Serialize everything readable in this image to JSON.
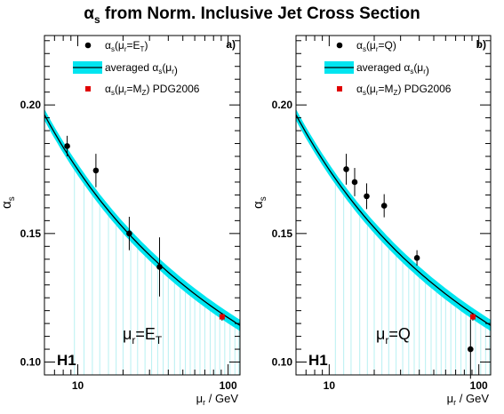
{
  "figure": {
    "title_symbol": "α",
    "title_sub": "s",
    "title_rest": " from Norm. Inclusive Jet Cross Section"
  },
  "colors": {
    "band": "#00e5f0",
    "band_lines": "#b8f0f2",
    "curve": "#000000",
    "data_marker": "#000000",
    "pdg_marker": "#e00000"
  },
  "chart_data": [
    {
      "type": "scatter",
      "panel_label": "a)",
      "experiment_label": "H1",
      "scale_label": {
        "main": "μ",
        "sub": "r",
        "eq": "=E",
        "eq_sub": "T"
      },
      "xlabel": {
        "main": "μ",
        "sub": "r",
        "rest": " / GeV"
      },
      "ylabel": {
        "main": "α",
        "sub": "s"
      },
      "xscale": "log",
      "xlim": [
        6,
        120
      ],
      "ylim": [
        0.095,
        0.227
      ],
      "xticks": [
        {
          "value": 10,
          "label": "10"
        },
        {
          "value": 100,
          "label": "100"
        }
      ],
      "yticks": [
        {
          "value": 0.1,
          "label": "0.10"
        },
        {
          "value": 0.15,
          "label": "0.15"
        },
        {
          "value": 0.2,
          "label": "0.20"
        }
      ],
      "legend_position": "top-right",
      "legend": [
        {
          "marker": "black-dot",
          "main": "α",
          "sub": "s",
          "open": "(μ",
          "sub2": "r",
          "eq": "=E",
          "sub3": "T",
          "close": ")"
        },
        {
          "marker": "cyan-band",
          "main": "averaged α",
          "sub": "s",
          "open": "(μ",
          "sub2": "r",
          "eq": "",
          "sub3": "",
          "close": ")"
        },
        {
          "marker": "red-square",
          "main": "α",
          "sub": "s",
          "open": "(μ",
          "sub2": "r",
          "eq": "=M",
          "sub3": "Z",
          "close": ") PDG2006"
        }
      ],
      "fit": {
        "alpha_s_MZ": 0.1188,
        "band_halfwidth": 0.0022,
        "label": "averaged αs(μr)"
      },
      "series": [
        {
          "name": "αs(μr=ET)",
          "points": [
            {
              "x": 8.5,
              "y": 0.184,
              "yerr": 0.004
            },
            {
              "x": 13.2,
              "y": 0.1745,
              "yerr": 0.0065
            },
            {
              "x": 22.0,
              "y": 0.15,
              "yerr": 0.0065
            },
            {
              "x": 35.0,
              "y": 0.137,
              "yerr": 0.0115
            }
          ]
        },
        {
          "name": "αs(μr=MZ) PDG2006",
          "points": [
            {
              "x": 91.2,
              "y": 0.1176,
              "yerr": 0.0015
            }
          ]
        }
      ],
      "vlines": [
        9.5,
        11,
        12.5,
        14,
        16,
        18,
        20,
        22.5,
        25,
        28,
        31,
        34,
        37,
        40,
        44,
        48,
        52,
        56,
        60,
        65,
        70,
        76,
        82,
        88,
        95,
        103,
        111,
        118
      ]
    },
    {
      "type": "scatter",
      "panel_label": "b)",
      "experiment_label": "H1",
      "scale_label": {
        "main": "μ",
        "sub": "r",
        "eq": "=Q",
        "eq_sub": ""
      },
      "xlabel": {
        "main": "μ",
        "sub": "r",
        "rest": " / GeV"
      },
      "ylabel": {
        "main": "α",
        "sub": "s"
      },
      "xscale": "log",
      "xlim": [
        6,
        120
      ],
      "ylim": [
        0.095,
        0.227
      ],
      "xticks": [
        {
          "value": 10,
          "label": "10"
        },
        {
          "value": 100,
          "label": "100"
        }
      ],
      "yticks": [
        {
          "value": 0.1,
          "label": "0.10"
        },
        {
          "value": 0.15,
          "label": "0.15"
        },
        {
          "value": 0.2,
          "label": "0.20"
        }
      ],
      "legend_position": "top-right",
      "legend": [
        {
          "marker": "black-dot",
          "main": "α",
          "sub": "s",
          "open": "(μ",
          "sub2": "r",
          "eq": "=Q",
          "sub3": "",
          "close": ")"
        },
        {
          "marker": "cyan-band",
          "main": "averaged α",
          "sub": "s",
          "open": "(μ",
          "sub2": "r",
          "eq": "",
          "sub3": "",
          "close": ")"
        },
        {
          "marker": "red-square",
          "main": "α",
          "sub": "s",
          "open": "(μ",
          "sub2": "r",
          "eq": "=M",
          "sub3": "Z",
          "close": ") PDG2006"
        }
      ],
      "fit": {
        "alpha_s_MZ": 0.1188,
        "band_halfwidth": 0.0022,
        "label": "averaged αs(μr)"
      },
      "series": [
        {
          "name": "αs(μr=Q)",
          "points": [
            {
              "x": 13.0,
              "y": 0.175,
              "yerr": 0.006
            },
            {
              "x": 14.8,
              "y": 0.17,
              "yerr": 0.0055
            },
            {
              "x": 17.8,
              "y": 0.1645,
              "yerr": 0.005
            },
            {
              "x": 23.3,
              "y": 0.1608,
              "yerr": 0.0045
            },
            {
              "x": 38.6,
              "y": 0.1405,
              "yerr": 0.003
            },
            {
              "x": 88.0,
              "y": 0.105,
              "yerr": 0.0115
            }
          ]
        },
        {
          "name": "αs(μr=MZ) PDG2006",
          "points": [
            {
              "x": 91.2,
              "y": 0.1176,
              "yerr": 0.0015
            }
          ]
        }
      ],
      "vlines": [
        11,
        12.5,
        14,
        16,
        18,
        20,
        22.5,
        25,
        28,
        31,
        34,
        37,
        40,
        44,
        48,
        52,
        56,
        60,
        65,
        70,
        76,
        82,
        88,
        95,
        103,
        111,
        118
      ]
    }
  ]
}
